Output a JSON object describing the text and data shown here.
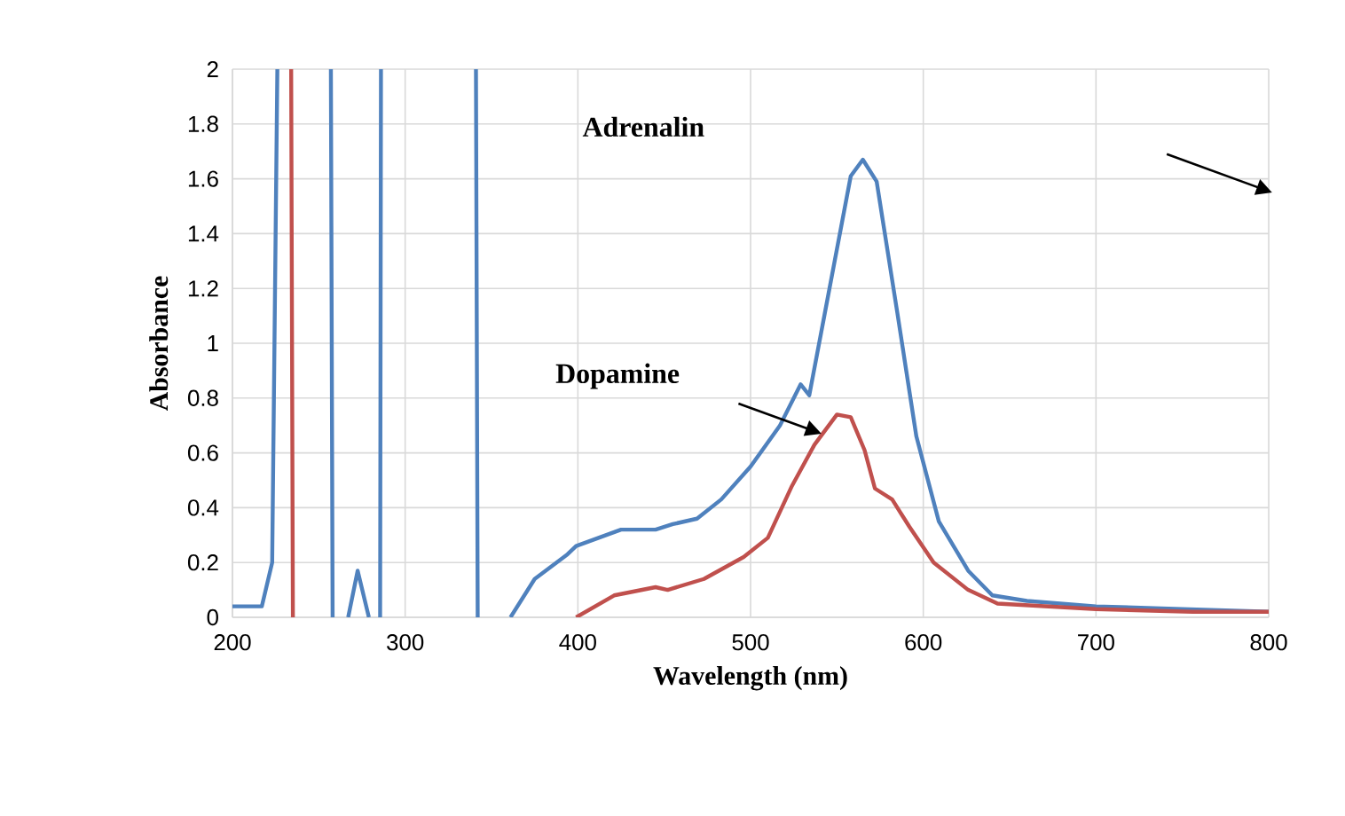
{
  "chart_data": {
    "type": "line",
    "xlabel": "Wavelength (nm)",
    "ylabel": "Absorbance",
    "xlim": [
      200,
      800
    ],
    "ylim": [
      0,
      2
    ],
    "xticks": [
      200,
      300,
      400,
      500,
      600,
      700,
      800
    ],
    "yticks": [
      0,
      0.2,
      0.4,
      0.6,
      0.8,
      1,
      1.2,
      1.4,
      1.6,
      1.8,
      2
    ],
    "annotations": [
      "Adrenalin",
      "Dopamine"
    ],
    "grid": true,
    "legend": false,
    "marker": "none",
    "line_style": "solid",
    "series": [
      {
        "color": "#4f81bd",
        "x": [
          200,
          217,
          223,
          226,
          240,
          257,
          258,
          263,
          267,
          272.5,
          279,
          282,
          285.5,
          286,
          300,
          341,
          342,
          350,
          361,
          375,
          394,
          399,
          425,
          445,
          455,
          469,
          483,
          500,
          517,
          529,
          534,
          543,
          549,
          558,
          565,
          573,
          585,
          596,
          609,
          626,
          640,
          660,
          700,
          750,
          800
        ],
        "values": [
          0.04,
          0.04,
          0.2,
          2,
          null,
          2,
          0,
          null,
          0,
          0.17,
          0,
          null,
          0,
          2,
          null,
          2,
          0,
          null,
          0,
          0.14,
          0.23,
          0.26,
          0.32,
          0.32,
          0.34,
          0.36,
          0.43,
          0.55,
          0.7,
          0.85,
          0.81,
          1.11,
          1.31,
          1.61,
          1.67,
          1.59,
          1.11,
          0.66,
          0.35,
          0.17,
          0.08,
          0.06,
          0.04,
          0.03,
          0.02
        ]
      },
      {
        "color": "#c0504d",
        "x": [
          234,
          235,
          300,
          399,
          421,
          445,
          452,
          473,
          496,
          510,
          524,
          537,
          550,
          558,
          566,
          572,
          582,
          592,
          606,
          626,
          643,
          700,
          756,
          760,
          800
        ],
        "values": [
          2,
          0,
          null,
          0,
          0.08,
          0.11,
          0.1,
          0.14,
          0.22,
          0.29,
          0.48,
          0.63,
          0.74,
          0.73,
          0.61,
          0.47,
          0.43,
          0.33,
          0.2,
          0.1,
          0.05,
          0.03,
          0.02,
          0.02,
          0.02
        ]
      }
    ]
  }
}
